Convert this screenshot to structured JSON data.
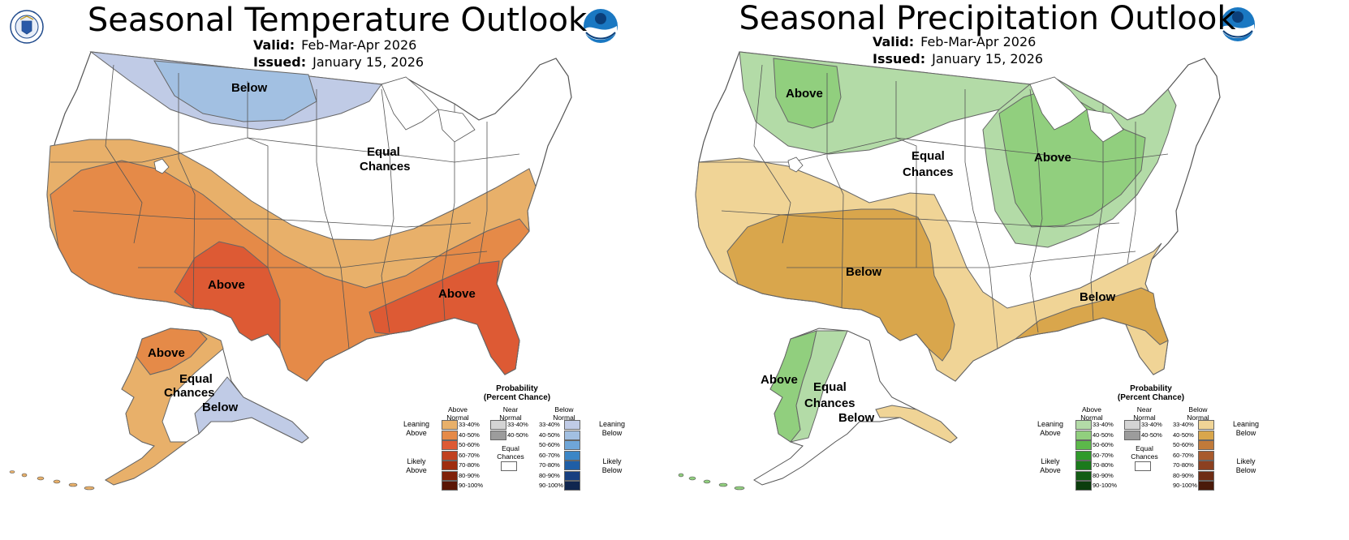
{
  "temperature": {
    "title": "Seasonal Temperature Outlook",
    "valid_label": "Valid:",
    "valid_value": "Feb-Mar-Apr 2026",
    "issued_label": "Issued:",
    "issued_value": "January 15, 2026",
    "map_labels": {
      "below_north": "Below",
      "equal_line1": "Equal",
      "equal_line2": "Chances",
      "above_southwest": "Above",
      "above_southeast": "Above",
      "ak_above": "Above",
      "ak_equal_line1": "Equal",
      "ak_equal_line2": "Chances",
      "ak_below": "Below"
    },
    "colors": {
      "above_33_40": "#e8b06a",
      "above_40_50": "#e58a48",
      "above_50_60": "#dd5a34",
      "below_33_40": "#c0cbe6",
      "below_40_50": "#a2c0e2"
    },
    "legend": {
      "title1": "Probability",
      "title2": "(Percent Chance)",
      "col_left1": "Above",
      "col_left2": "Normal",
      "col_mid1": "Near",
      "col_mid2": "Normal",
      "col_right1": "Below",
      "col_right2": "Normal",
      "lean_left1": "Leaning",
      "lean_left2": "Above",
      "likely_left1": "Likely",
      "likely_left2": "Above",
      "lean_right1": "Leaning",
      "lean_right2": "Below",
      "likely_right1": "Likely",
      "likely_right2": "Below",
      "equal1": "Equal",
      "equal2": "Chances",
      "ranges": [
        "33-40%",
        "40-50%",
        "50-60%",
        "60-70%",
        "70-80%",
        "80-90%",
        "90-100%"
      ],
      "near_ranges": [
        "33-40%",
        "40-50%"
      ],
      "left_colors": [
        "#e8b06a",
        "#e58a48",
        "#dd5a34",
        "#c0411f",
        "#9f2d0f",
        "#7f2008",
        "#5a1504"
      ],
      "right_colors": [
        "#c0cbe6",
        "#a2c0e2",
        "#6fa6d8",
        "#3b86c6",
        "#1f5ea6",
        "#173f80",
        "#10264f"
      ],
      "near_colors": [
        "#d4d4d4",
        "#9c9c9c"
      ]
    }
  },
  "precipitation": {
    "title": "Seasonal Precipitation Outlook",
    "valid_label": "Valid:",
    "valid_value": "Feb-Mar-Apr 2026",
    "issued_label": "Issued:",
    "issued_value": "January 15, 2026",
    "map_labels": {
      "above_northwest": "Above",
      "equal_line1": "Equal",
      "equal_line2": "Chances",
      "above_east": "Above",
      "below_southwest": "Below",
      "below_southeast": "Below",
      "ak_above": "Above",
      "ak_equal_line1": "Equal",
      "ak_equal_line2": "Chances",
      "ak_below": "Below"
    },
    "colors": {
      "above_33_40": "#b3dba7",
      "above_40_50": "#91cf7e",
      "below_33_40": "#f0d496",
      "below_40_50": "#d9a64c"
    },
    "legend": {
      "title1": "Probability",
      "title2": "(Percent Chance)",
      "col_left1": "Above",
      "col_left2": "Normal",
      "col_mid1": "Near",
      "col_mid2": "Normal",
      "col_right1": "Below",
      "col_right2": "Normal",
      "lean_left1": "Leaning",
      "lean_left2": "Above",
      "likely_left1": "Likely",
      "likely_left2": "Above",
      "lean_right1": "Leaning",
      "lean_right2": "Below",
      "likely_right1": "Likely",
      "likely_right2": "Below",
      "equal1": "Equal",
      "equal2": "Chances",
      "ranges": [
        "33-40%",
        "40-50%",
        "50-60%",
        "60-70%",
        "70-80%",
        "80-90%",
        "90-100%"
      ],
      "near_ranges": [
        "33-40%",
        "40-50%"
      ],
      "left_colors": [
        "#b3dba7",
        "#91cf7e",
        "#5cb84a",
        "#2f9a2b",
        "#1b7a1c",
        "#125c14",
        "#0b3d0d"
      ],
      "right_colors": [
        "#f0d496",
        "#d9a64c",
        "#c07a3a",
        "#a85a2c",
        "#8b4020",
        "#6e2c14",
        "#4a1a0a"
      ],
      "near_colors": [
        "#d4d4d4",
        "#9c9c9c"
      ]
    }
  }
}
